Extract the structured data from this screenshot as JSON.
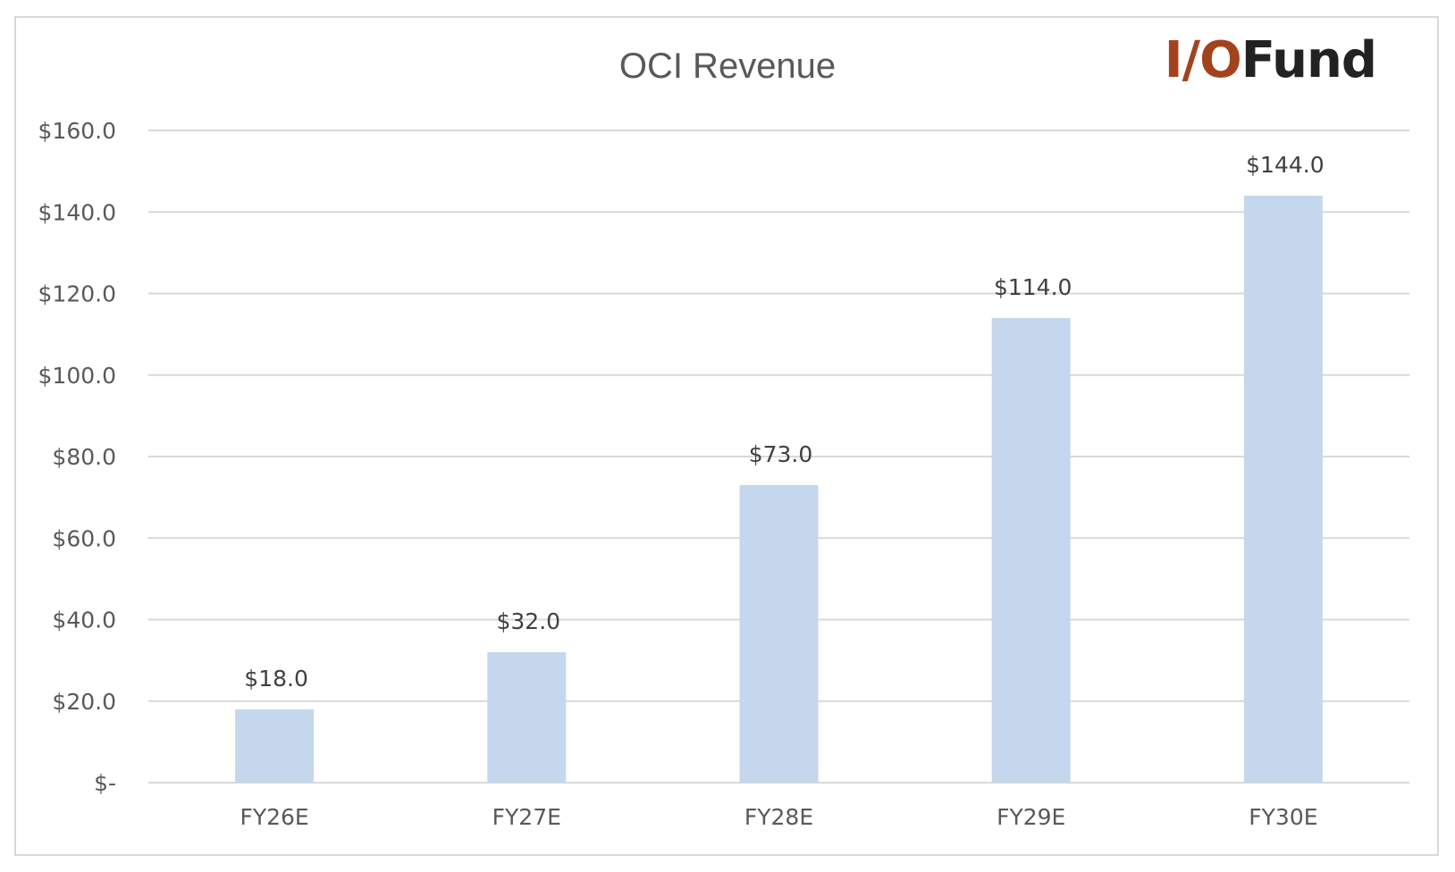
{
  "chart_data": {
    "type": "bar",
    "title": "OCI Revenue",
    "logo": {
      "accent_text": "I/O",
      "rest_text": "Fund",
      "accent_color": "#a3431e",
      "rest_color": "#222222"
    },
    "categories": [
      "FY26E",
      "FY27E",
      "FY28E",
      "FY29E",
      "FY30E"
    ],
    "values": [
      18.0,
      32.0,
      73.0,
      114.0,
      144.0
    ],
    "data_labels": [
      "$18.0",
      "$32.0",
      "$73.0",
      "$114.0",
      "$144.0"
    ],
    "y_ticks": [
      {
        "value": 0,
        "label": "$-"
      },
      {
        "value": 20,
        "label": "$20.0"
      },
      {
        "value": 40,
        "label": "$40.0"
      },
      {
        "value": 60,
        "label": "$60.0"
      },
      {
        "value": 80,
        "label": "$80.0"
      },
      {
        "value": 100,
        "label": "$100.0"
      },
      {
        "value": 120,
        "label": "$120.0"
      },
      {
        "value": 140,
        "label": "$140.0"
      },
      {
        "value": 160,
        "label": "$160.0"
      }
    ],
    "ylim": [
      0,
      160
    ],
    "grid": true,
    "bar_color": "#c5d7ec",
    "grid_color": "#d9d9d9",
    "text_color": "#595959",
    "label_color": "#404040"
  }
}
